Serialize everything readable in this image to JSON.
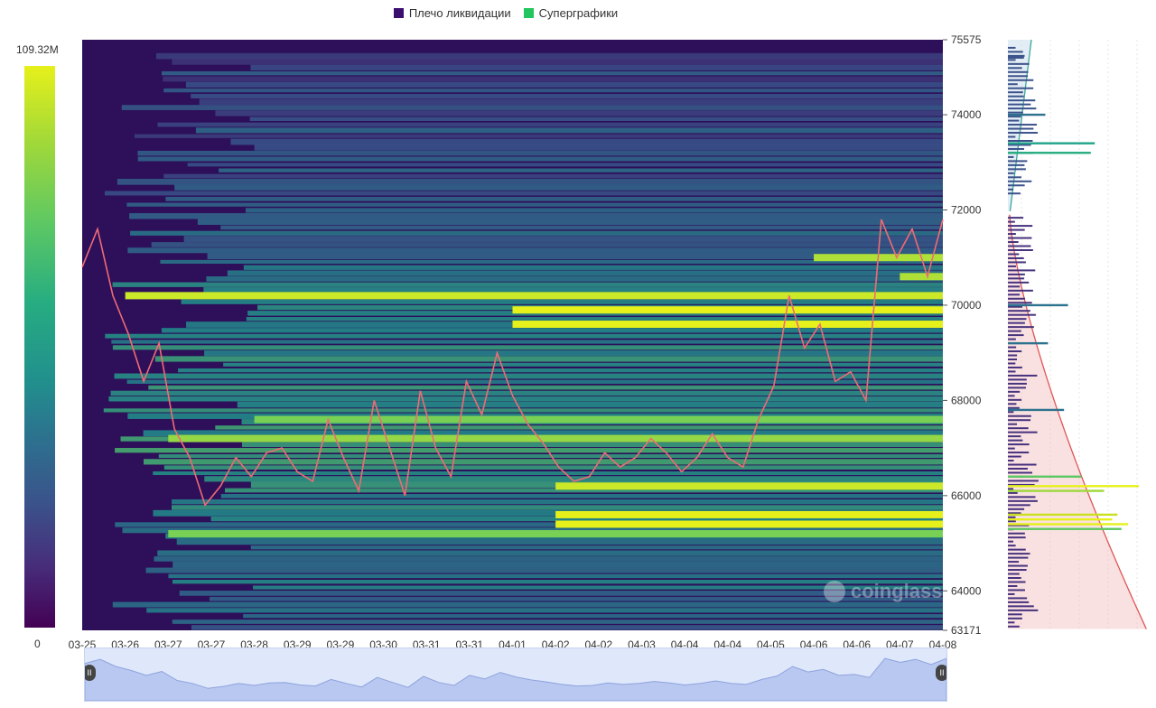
{
  "legend": [
    {
      "label": "Плечо ликвидации",
      "color": "#3b0f70"
    },
    {
      "label": "Суперграфики",
      "color": "#22c55e"
    }
  ],
  "colorbar": {
    "max_label": "109.32M",
    "min_label": "0"
  },
  "watermark": "coinglass",
  "navigator": {
    "left_handle": "II",
    "right_handle": "II"
  },
  "chart_data": {
    "type": "heatmap",
    "title": "",
    "x_tick_labels": [
      "03-25",
      "03-26",
      "03-27",
      "03-27",
      "03-28",
      "03-29",
      "03-29",
      "03-30",
      "03-31",
      "03-31",
      "04-01",
      "04-02",
      "04-02",
      "04-03",
      "04-04",
      "04-04",
      "04-05",
      "04-06",
      "04-06",
      "04-07",
      "04-08"
    ],
    "y_ticks": [
      75575,
      74000,
      72000,
      70000,
      68000,
      66000,
      64000,
      63171
    ],
    "ylim": [
      63171,
      75575
    ],
    "colorscale": {
      "min": 0,
      "max": "109.32M",
      "colors": [
        "#440154",
        "#3b528b",
        "#21908d",
        "#5dc863",
        "#e6f01a"
      ]
    },
    "price_series": [
      70800,
      71600,
      70200,
      69400,
      68400,
      69200,
      67400,
      66800,
      65800,
      66200,
      66800,
      66400,
      66900,
      67000,
      66500,
      66300,
      67600,
      66800,
      66100,
      68000,
      67000,
      66000,
      68200,
      67000,
      66400,
      68400,
      67700,
      69000,
      68100,
      67500,
      67100,
      66600,
      66300,
      66400,
      66900,
      66600,
      66800,
      67200,
      66900,
      66500,
      66800,
      67300,
      66800,
      66600,
      67600,
      68300,
      70200,
      69100,
      69600,
      68400,
      68600,
      68000,
      71800,
      71000,
      71600,
      70600,
      71800
    ],
    "liquidation_bands": [
      {
        "price": 70200,
        "start": "03-26",
        "level": 0.95
      },
      {
        "price": 69900,
        "start": "04-01",
        "level": 1.0
      },
      {
        "price": 69600,
        "start": "04-01",
        "level": 1.0
      },
      {
        "price": 71000,
        "start": "04-06",
        "level": 0.9
      },
      {
        "price": 70600,
        "start": "04-07",
        "level": 0.9
      },
      {
        "price": 67600,
        "start": "03-28",
        "level": 0.8
      },
      {
        "price": 67200,
        "start": "03-27",
        "level": 0.85
      },
      {
        "price": 66200,
        "start": "04-02",
        "level": 0.95
      },
      {
        "price": 65600,
        "start": "04-02",
        "level": 1.0
      },
      {
        "price": 65400,
        "start": "04-02",
        "level": 1.0
      },
      {
        "price": 65200,
        "start": "03-27",
        "level": 0.8
      }
    ],
    "side_profile": {
      "bars": [
        {
          "price": 75200,
          "value": 0.12,
          "color": "#3b528b"
        },
        {
          "price": 74000,
          "value": 0.28,
          "color": "#2c728e"
        },
        {
          "price": 73400,
          "value": 0.65,
          "color": "#21a38a"
        },
        {
          "price": 73200,
          "value": 0.62,
          "color": "#27ad81"
        },
        {
          "price": 70000,
          "value": 0.45,
          "color": "#2c728e"
        },
        {
          "price": 69200,
          "value": 0.3,
          "color": "#2c728e"
        },
        {
          "price": 67800,
          "value": 0.42,
          "color": "#2c728e"
        },
        {
          "price": 66400,
          "value": 0.55,
          "color": "#5dc863"
        },
        {
          "price": 66200,
          "value": 0.98,
          "color": "#e6f01a"
        },
        {
          "price": 66100,
          "value": 0.72,
          "color": "#9fd83a"
        },
        {
          "price": 65600,
          "value": 0.82,
          "color": "#c8e020"
        },
        {
          "price": 65500,
          "value": 0.78,
          "color": "#e6f01a"
        },
        {
          "price": 65400,
          "value": 0.9,
          "color": "#e6f01a"
        },
        {
          "price": 65300,
          "value": 0.85,
          "color": "#5dc863"
        }
      ]
    }
  }
}
